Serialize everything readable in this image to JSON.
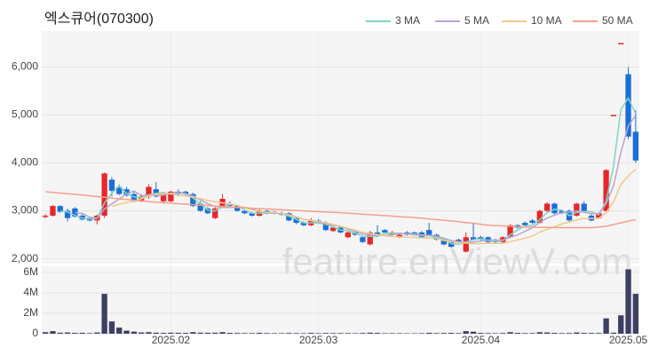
{
  "chart_data": {
    "type": "candlestick",
    "title": "엑스큐어(070300)",
    "watermark": "feature.enViewV.com",
    "categories": [
      null,
      null,
      null,
      null,
      null,
      null,
      null,
      null,
      null,
      null,
      null,
      null,
      null,
      null,
      null,
      null,
      null,
      "2025.02",
      null,
      null,
      null,
      null,
      null,
      null,
      null,
      null,
      null,
      null,
      null,
      null,
      null,
      null,
      null,
      null,
      null,
      null,
      null,
      "2025.03",
      null,
      null,
      null,
      null,
      null,
      null,
      null,
      null,
      null,
      null,
      null,
      null,
      null,
      null,
      null,
      null,
      null,
      null,
      null,
      null,
      null,
      "2025.04",
      null,
      null,
      null,
      null,
      null,
      null,
      null,
      null,
      null,
      null,
      null,
      null,
      null,
      null,
      null,
      null,
      null,
      null,
      null,
      "2025.05",
      null
    ],
    "open": [
      2880,
      2900,
      3100,
      3000,
      3050,
      2900,
      2850,
      2800,
      2900,
      3650,
      3500,
      3450,
      3350,
      3200,
      3300,
      3450,
      3200,
      3200,
      3400,
      3400,
      3350,
      3150,
      3050,
      2850,
      3100,
      3150,
      3100,
      3000,
      2950,
      2900,
      3000,
      2980,
      2950,
      2950,
      2850,
      2750,
      2700,
      2800,
      2750,
      2580,
      2650,
      2450,
      2550,
      2450,
      2300,
      2550,
      2600,
      2500,
      2450,
      2550,
      2550,
      2550,
      2600,
      2500,
      2400,
      2350,
      2400,
      2150,
      2450,
      2450,
      2450,
      2400,
      2350,
      2450,
      2700,
      2750,
      2800,
      2750,
      3000,
      3150,
      3000,
      3000,
      2900,
      3150,
      2900,
      2850,
      3000,
      4980,
      6480,
      5850,
      4650
    ],
    "high": [
      2930,
      3120,
      3120,
      3050,
      3080,
      2950,
      2870,
      2920,
      3800,
      3700,
      3550,
      3500,
      3400,
      3350,
      3550,
      3600,
      3400,
      3420,
      3450,
      3420,
      3380,
      3200,
      3080,
      3080,
      3350,
      3200,
      3120,
      3020,
      2980,
      3030,
      3020,
      3000,
      2980,
      2970,
      2870,
      2780,
      2850,
      2830,
      2780,
      2680,
      2680,
      2580,
      2570,
      2480,
      2580,
      2700,
      2620,
      2580,
      2530,
      2580,
      2570,
      2580,
      2750,
      2520,
      2420,
      2370,
      2420,
      2550,
      2750,
      2480,
      2470,
      2420,
      2470,
      2720,
      2720,
      2780,
      2830,
      3020,
      3180,
      3170,
      3020,
      3030,
      3170,
      3200,
      2950,
      2970,
      3870,
      5000,
      6500,
      6000,
      5100
    ],
    "low": [
      2850,
      2880,
      2960,
      2780,
      2860,
      2800,
      2780,
      2720,
      2850,
      3300,
      3330,
      3300,
      3180,
      3180,
      3250,
      3280,
      3150,
      3180,
      3330,
      3320,
      3080,
      2980,
      2930,
      2830,
      3080,
      3080,
      2980,
      2930,
      2880,
      2880,
      2930,
      2930,
      2900,
      2780,
      2720,
      2680,
      2680,
      2730,
      2580,
      2560,
      2530,
      2430,
      2480,
      2330,
      2280,
      2480,
      2530,
      2480,
      2430,
      2480,
      2480,
      2430,
      2480,
      2380,
      2280,
      2230,
      2330,
      2130,
      2380,
      2380,
      2330,
      2330,
      2330,
      2430,
      2630,
      2680,
      2730,
      2730,
      2980,
      2930,
      2930,
      2780,
      2880,
      2980,
      2780,
      2830,
      2980,
      4980,
      6480,
      4500,
      4000
    ],
    "close": [
      2900,
      3100,
      2980,
      2850,
      2880,
      2820,
      2800,
      2900,
      3780,
      3420,
      3350,
      3320,
      3200,
      3300,
      3500,
      3300,
      3350,
      3400,
      3350,
      3350,
      3100,
      3000,
      2950,
      3050,
      3250,
      3100,
      3000,
      2950,
      2900,
      3000,
      2950,
      2950,
      2920,
      2800,
      2750,
      2700,
      2800,
      2750,
      2600,
      2650,
      2550,
      2550,
      2500,
      2350,
      2550,
      2500,
      2550,
      2550,
      2500,
      2500,
      2500,
      2450,
      2500,
      2400,
      2300,
      2250,
      2350,
      2450,
      2400,
      2400,
      2350,
      2350,
      2450,
      2700,
      2650,
      2700,
      2750,
      3000,
      3150,
      2950,
      2950,
      2800,
      3150,
      3000,
      2800,
      2950,
      3850,
      5000,
      6500,
      4550,
      4050
    ],
    "up_color": "#e8262a",
    "down_color": "#1a6fd8",
    "ylim": [
      1900,
      6750
    ],
    "yticks": [
      {
        "value": 2000,
        "label": "2,000"
      },
      {
        "value": 3000,
        "label": "3,000"
      },
      {
        "value": 4000,
        "label": "4,000"
      },
      {
        "value": 5000,
        "label": "5,000"
      },
      {
        "value": 6000,
        "label": "6,000"
      }
    ],
    "grid": true,
    "legend": "top-right",
    "series": [
      {
        "name": "3 MA",
        "color": "#82d3c5",
        "values": [
          null,
          null,
          2993,
          2977,
          2903,
          2850,
          2833,
          2840,
          3160,
          3367,
          3517,
          3363,
          3290,
          3273,
          3333,
          3367,
          3383,
          3350,
          3367,
          3367,
          3267,
          3150,
          3017,
          3000,
          3083,
          3133,
          3117,
          3017,
          2950,
          2950,
          2950,
          2967,
          2940,
          2890,
          2823,
          2750,
          2750,
          2750,
          2717,
          2667,
          2600,
          2583,
          2533,
          2467,
          2467,
          2467,
          2533,
          2533,
          2533,
          2517,
          2500,
          2483,
          2483,
          2450,
          2400,
          2317,
          2300,
          2350,
          2400,
          2417,
          2383,
          2367,
          2383,
          2500,
          2600,
          2683,
          2700,
          2817,
          2967,
          3033,
          3017,
          2900,
          2967,
          2983,
          2983,
          2917,
          3200,
          3933,
          5117,
          5350,
          5033
        ]
      },
      {
        "name": "5 MA",
        "color": "#b9a5d0",
        "values": [
          null,
          null,
          null,
          null,
          2962,
          2946,
          2866,
          2850,
          3036,
          3144,
          3250,
          3354,
          3414,
          3318,
          3334,
          3324,
          3330,
          3370,
          3380,
          3350,
          3310,
          3230,
          3150,
          3090,
          3070,
          3070,
          3070,
          3070,
          3040,
          2990,
          2960,
          2950,
          2944,
          2924,
          2874,
          2824,
          2794,
          2760,
          2720,
          2700,
          2670,
          2620,
          2570,
          2520,
          2500,
          2490,
          2490,
          2500,
          2530,
          2520,
          2520,
          2500,
          2490,
          2470,
          2430,
          2380,
          2360,
          2350,
          2350,
          2370,
          2390,
          2390,
          2390,
          2450,
          2500,
          2570,
          2650,
          2760,
          2850,
          2910,
          2960,
          2970,
          3000,
          2970,
          2940,
          2940,
          3150,
          3520,
          4220,
          4770,
          4990
        ]
      },
      {
        "name": "10 MA",
        "color": "#f2c88a",
        "values": [
          null,
          null,
          null,
          null,
          null,
          null,
          null,
          null,
          null,
          3093,
          3138,
          3172,
          3207,
          3249,
          3311,
          3344,
          3360,
          3362,
          3318,
          3311,
          3286,
          3254,
          3217,
          3192,
          3167,
          3147,
          3112,
          3067,
          3022,
          2987,
          2972,
          2967,
          2942,
          2917,
          2867,
          2822,
          2802,
          2782,
          2752,
          2717,
          2677,
          2637,
          2597,
          2552,
          2527,
          2507,
          2482,
          2462,
          2457,
          2452,
          2447,
          2437,
          2437,
          2422,
          2382,
          2357,
          2337,
          2327,
          2317,
          2317,
          2322,
          2322,
          2322,
          2357,
          2392,
          2432,
          2472,
          2557,
          2617,
          2667,
          2727,
          2767,
          2812,
          2842,
          2842,
          2847,
          2967,
          3187,
          3552,
          3727,
          3867
        ]
      },
      {
        "name": "50 MA",
        "color": "#f4a08a",
        "values": [
          3400,
          3385,
          3370,
          3356,
          3343,
          3330,
          3314,
          3298,
          3282,
          3266,
          3250,
          3236,
          3222,
          3208,
          3194,
          3180,
          3170,
          3160,
          3150,
          3140,
          3130,
          3120,
          3110,
          3100,
          3090,
          3080,
          3072,
          3064,
          3056,
          3048,
          3040,
          3032,
          3024,
          3016,
          3008,
          3000,
          2992,
          2984,
          2976,
          2968,
          2960,
          2950,
          2940,
          2930,
          2920,
          2910,
          2900,
          2890,
          2880,
          2870,
          2860,
          2846,
          2832,
          2818,
          2804,
          2790,
          2773,
          2757,
          2740,
          2720,
          2700,
          2693,
          2687,
          2680,
          2670,
          2660,
          2658,
          2656,
          2654,
          2652,
          2650,
          2650,
          2650,
          2650,
          2650,
          2660,
          2680,
          2715,
          2750,
          2785,
          2820
        ]
      }
    ],
    "volume": {
      "color": "#3d3f63",
      "values": [
        150000,
        250000,
        100000,
        120000,
        80000,
        90000,
        60000,
        120000,
        3900000,
        1200000,
        600000,
        300000,
        200000,
        120000,
        150000,
        100000,
        80000,
        100000,
        90000,
        80000,
        150000,
        100000,
        90000,
        100000,
        150000,
        80000,
        70000,
        60000,
        60000,
        90000,
        60000,
        50000,
        50000,
        70000,
        60000,
        50000,
        80000,
        50000,
        70000,
        60000,
        60000,
        60000,
        50000,
        70000,
        100000,
        80000,
        50000,
        50000,
        50000,
        40000,
        40000,
        50000,
        90000,
        60000,
        70000,
        80000,
        60000,
        250000,
        200000,
        80000,
        60000,
        50000,
        70000,
        150000,
        80000,
        60000,
        60000,
        150000,
        120000,
        80000,
        60000,
        70000,
        120000,
        80000,
        70000,
        70000,
        1500000,
        100000,
        1800000,
        6300000,
        3900000
      ],
      "ylim": [
        0,
        6600000
      ],
      "yticks": [
        0,
        {
          "value": 2000000,
          "label": "2M"
        },
        {
          "value": 4000000,
          "label": "4M"
        },
        {
          "value": 6000000,
          "label": "6M"
        }
      ]
    }
  }
}
